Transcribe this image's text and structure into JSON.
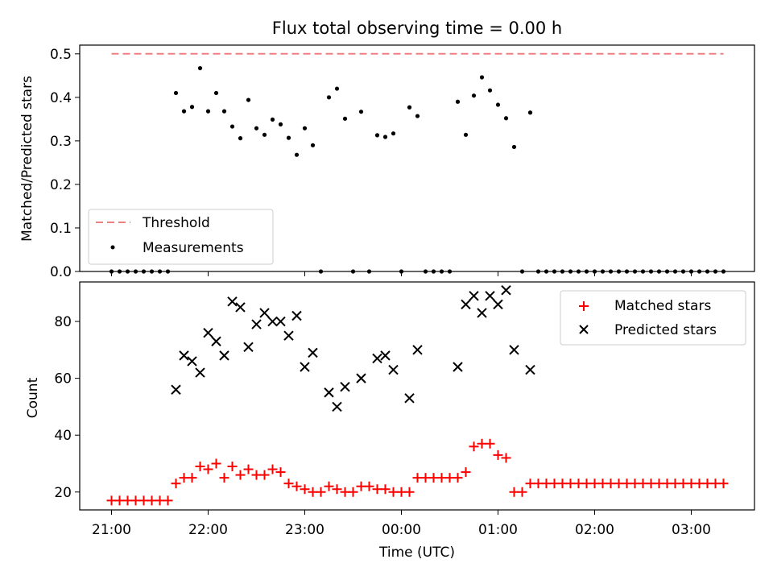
{
  "chart_data": {
    "title": "Flux total observing time = 0.00 h",
    "xlabel": "Time (UTC)",
    "x_ticks": [
      "21:00",
      "22:00",
      "23:00",
      "00:00",
      "01:00",
      "02:00",
      "03:00"
    ],
    "x": [
      0,
      1,
      2,
      3,
      4,
      5,
      6,
      7,
      8,
      9,
      10,
      11,
      12,
      13,
      14,
      15,
      16,
      17,
      18,
      19,
      20,
      21,
      22,
      23,
      24,
      25,
      26,
      27,
      28,
      29,
      30,
      31,
      32,
      33,
      34,
      35,
      36,
      37,
      38,
      39,
      40,
      41,
      42,
      43,
      44,
      45,
      46,
      47,
      48,
      49,
      50,
      51,
      52,
      53,
      54,
      55,
      56,
      57,
      58,
      59,
      60,
      61,
      62,
      63,
      64,
      65,
      66,
      67,
      68,
      69,
      70,
      71,
      72,
      73,
      74,
      75,
      76
    ],
    "panels": [
      {
        "type": "line",
        "ylabel": "Matched/Predicted stars",
        "ylim": [
          0,
          0.52
        ],
        "y_ticks": [
          "0.0",
          "0.1",
          "0.2",
          "0.3",
          "0.4",
          "0.5"
        ],
        "legend_position": "lower-left",
        "series": [
          {
            "name": "Threshold",
            "style": "dashed-line",
            "color": "#f08080",
            "x_range": [
              0,
              76
            ],
            "values": [
              0.5,
              0.5
            ]
          },
          {
            "name": "Measurements",
            "style": "dot",
            "color": "#000000",
            "values": [
              0,
              0,
              0,
              0,
              0,
              0,
              0,
              0,
              0.41,
              0.368,
              0.378,
              0.467,
              0.368,
              0.41,
              0.368,
              0.333,
              0.306,
              0.394,
              0.329,
              0.314,
              0.349,
              0.338,
              0.307,
              0.268,
              0.329,
              0.29,
              0,
              0.4,
              0.42,
              0.351,
              0,
              0.367,
              0,
              0.313,
              0.309,
              0.317,
              0,
              0.377,
              0.357,
              0,
              0,
              0,
              0,
              0.39,
              0.314,
              0.404,
              0.446,
              0.416,
              0.383,
              0.352,
              0.286,
              0,
              0.365,
              0,
              0,
              0,
              0,
              0,
              0,
              0,
              0,
              0,
              0,
              0,
              0,
              0,
              0,
              0,
              0,
              0,
              0,
              0,
              0,
              0,
              0,
              0,
              0
            ]
          }
        ]
      },
      {
        "type": "scatter",
        "ylabel": "Count",
        "ylim": [
          13.7,
          93.9
        ],
        "y_ticks": [
          "20",
          "40",
          "60",
          "80"
        ],
        "legend_position": "upper-right",
        "series": [
          {
            "name": "Matched stars",
            "marker": "plus",
            "color": "#ff0000",
            "values": [
              17,
              17,
              17,
              17,
              17,
              17,
              17,
              17,
              23,
              25,
              25,
              29,
              28,
              30,
              25,
              29,
              26,
              28,
              26,
              26,
              28,
              27,
              23,
              22,
              21,
              20,
              20,
              22,
              21,
              20,
              20,
              22,
              22,
              21,
              21,
              20,
              20,
              20,
              25,
              25,
              25,
              25,
              25,
              25,
              27,
              36,
              37,
              37,
              33,
              32,
              20,
              20,
              23,
              23,
              23,
              23,
              23,
              23,
              23,
              23,
              23,
              23,
              23,
              23,
              23,
              23,
              23,
              23,
              23,
              23,
              23,
              23,
              23,
              23,
              23,
              23,
              23
            ]
          },
          {
            "name": "Predicted stars",
            "marker": "x",
            "color": "#000000",
            "values": [
              null,
              null,
              null,
              null,
              null,
              null,
              null,
              null,
              56,
              68,
              66,
              62,
              76,
              73,
              68,
              87,
              85,
              71,
              79,
              83,
              80,
              80,
              75,
              82,
              64,
              69,
              null,
              55,
              50,
              57,
              null,
              60,
              null,
              67,
              68,
              63,
              null,
              53,
              70,
              null,
              null,
              null,
              null,
              64,
              86,
              89,
              83,
              89,
              86,
              91,
              70,
              null,
              63,
              null,
              null,
              null,
              null,
              null,
              null,
              null,
              null,
              null,
              null,
              null,
              null,
              null,
              null,
              null,
              null,
              null,
              null,
              null,
              null,
              null,
              null,
              null,
              null
            ]
          }
        ]
      }
    ]
  }
}
